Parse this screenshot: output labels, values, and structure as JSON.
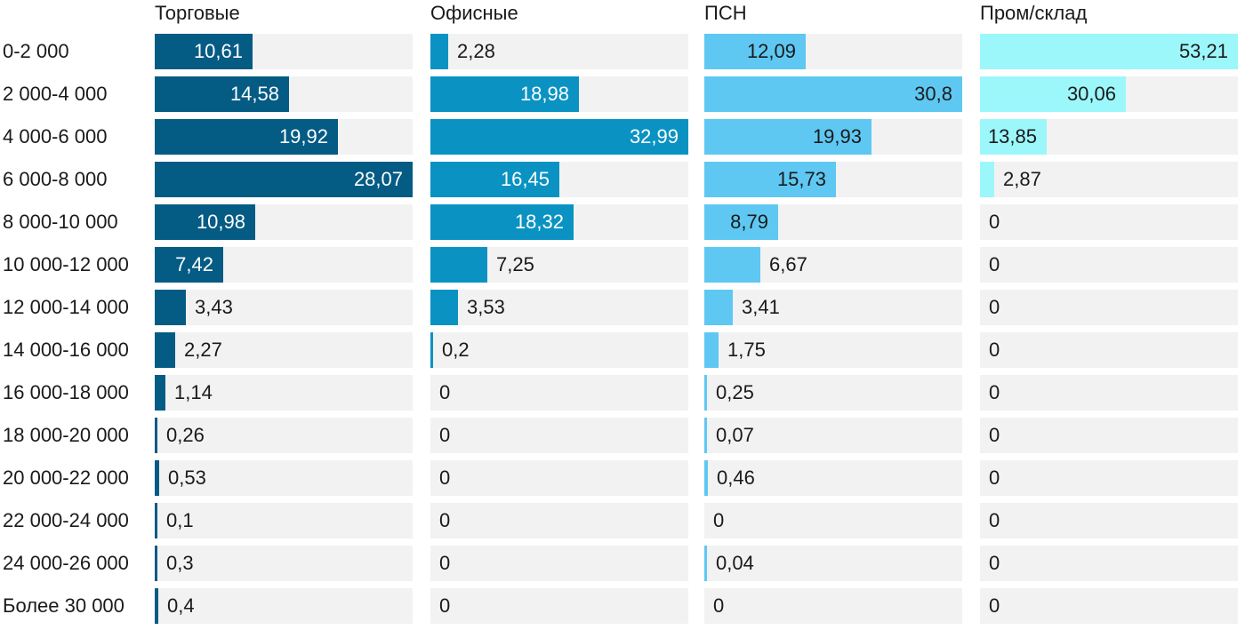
{
  "chart_data": {
    "type": "bar",
    "orientation": "horizontal",
    "layout": "small-multiples",
    "categories": [
      "0-2 000",
      "2 000-4 000",
      "4 000-6 000",
      "6 000-8 000",
      "8 000-10 000",
      "10 000-12 000",
      "12 000-14 000",
      "14 000-16 000",
      "16 000-18 000",
      "18 000-20 000",
      "20 000-22 000",
      "22 000-24 000",
      "24 000-26 000",
      "Более 30 000"
    ],
    "series": [
      {
        "name": "Торговые",
        "color": "#045b84",
        "inside_text": "light",
        "values": [
          10.61,
          14.58,
          19.92,
          28.07,
          10.98,
          7.42,
          3.43,
          2.27,
          1.14,
          0.26,
          0.53,
          0.1,
          0.3,
          0.4
        ],
        "labels": [
          "10,61",
          "14,58",
          "19,92",
          "28,07",
          "10,98",
          "7,42",
          "3,43",
          "2,27",
          "1,14",
          "0,26",
          "0,53",
          "0,1",
          "0,3",
          "0,4"
        ]
      },
      {
        "name": "Офисные",
        "color": "#0a93c2",
        "inside_text": "light",
        "values": [
          2.28,
          18.98,
          32.99,
          16.45,
          18.32,
          7.25,
          3.53,
          0.2,
          0,
          0,
          0,
          0,
          0,
          0
        ],
        "labels": [
          "2,28",
          "18,98",
          "32,99",
          "16,45",
          "18,32",
          "7,25",
          "3,53",
          "0,2",
          "0",
          "0",
          "0",
          "0",
          "0",
          "0"
        ]
      },
      {
        "name": "ПСН",
        "color": "#5ec8f2",
        "inside_text": "dark",
        "values": [
          12.09,
          30.8,
          19.93,
          15.73,
          8.79,
          6.67,
          3.41,
          1.75,
          0.25,
          0.07,
          0.46,
          0,
          0.04,
          0
        ],
        "labels": [
          "12,09",
          "30,8",
          "19,93",
          "15,73",
          "8,79",
          "6,67",
          "3,41",
          "1,75",
          "0,25",
          "0,07",
          "0,46",
          "0",
          "0,04",
          "0"
        ]
      },
      {
        "name": "Пром/склад",
        "color": "#9cf7fb",
        "inside_text": "dark",
        "values": [
          53.21,
          30.06,
          13.85,
          2.87,
          0,
          0,
          0,
          0,
          0,
          0,
          0,
          0,
          0,
          0
        ],
        "labels": [
          "53,21",
          "30,06",
          "13,85",
          "2,87",
          "0",
          "0",
          "0",
          "0",
          "0",
          "0",
          "0",
          "0",
          "0",
          "0"
        ]
      }
    ],
    "xlim_per_panel": [
      28.07,
      32.99,
      30.8,
      53.21
    ]
  }
}
